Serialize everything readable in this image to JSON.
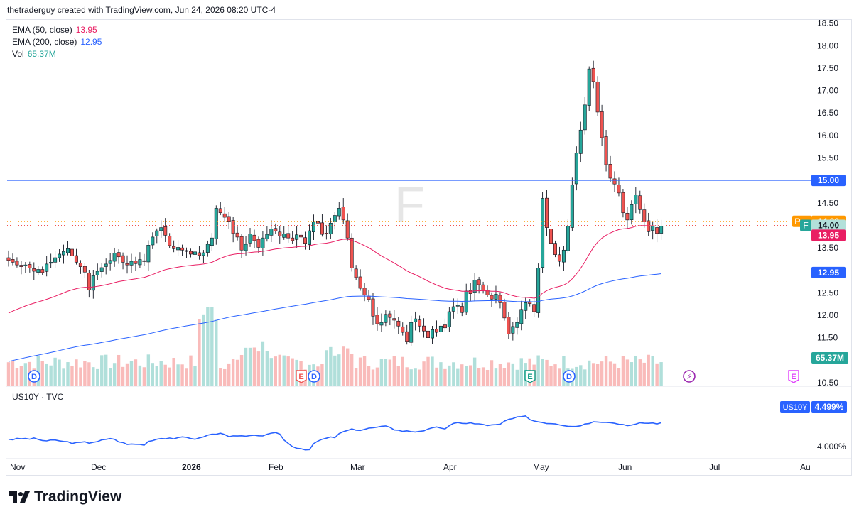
{
  "credit": "thetraderguy created with TradingView.com, Jun 24, 2026 08:20 UTC-4",
  "symbol_watermark": "F",
  "brand": "TradingView",
  "legend": {
    "ema50_label": "EMA (50, close)",
    "ema50_value": "13.95",
    "ema200_label": "EMA (200, close)",
    "ema200_value": "12.95",
    "vol_label": "Vol",
    "vol_value": "65.37M"
  },
  "price_axis": [
    "18.50",
    "18.00",
    "17.50",
    "17.00",
    "16.50",
    "16.00",
    "15.50",
    "15.00",
    "14.50",
    "14.00",
    "13.50",
    "13.00",
    "12.50",
    "12.00",
    "11.50",
    "11.00",
    "10.50"
  ],
  "badges": {
    "level": "15.00",
    "pre_tag": "Pre",
    "pre_value": "14.09",
    "last_tag": "F",
    "last_value": "14.00",
    "ema50": "13.95",
    "ema200": "12.95",
    "volume": "65.37M"
  },
  "event_markers": [
    {
      "icon": "dividend-icon",
      "label": "D",
      "date": "2025-11-21"
    },
    {
      "icon": "earnings-icon",
      "label": "E",
      "date": "2026-02-10"
    },
    {
      "icon": "dividend-icon",
      "label": "D",
      "date": "2026-02-12"
    },
    {
      "icon": "earnings-icon",
      "label": "E",
      "date": "2026-04-29"
    },
    {
      "icon": "dividend-icon",
      "label": "D",
      "date": "2026-05-12"
    },
    {
      "icon": "split-icon",
      "label": "",
      "date": "2026-06-24"
    },
    {
      "icon": "upcoming-earnings-icon",
      "label": "E",
      "date": "2026-07-29"
    }
  ],
  "sub_pane": {
    "title": "US10Y · TVC",
    "tag": "US10Y",
    "value": "4.499%",
    "axis_label": "4.000%"
  },
  "time_axis": [
    "Nov",
    "Dec",
    "2026",
    "Feb",
    "Mar",
    "Apr",
    "May",
    "Jun",
    "Jul",
    "Au"
  ],
  "colors": {
    "up": "#26a69a",
    "down": "#ef5350",
    "ema50": "#e91e63",
    "ema200": "#2962ff",
    "pre": "#ff9800",
    "us10y": "#2962ff"
  },
  "chart_data": {
    "type": "candlestick",
    "ylim": [
      10.5,
      18.5
    ],
    "horizontal_line": 15.0,
    "ohlc_daily_approx": [
      [
        13.22,
        13.18,
        13.12,
        13.08,
        13.12,
        13.05,
        12.98,
        13.02,
        12.95,
        13.14,
        13.18,
        13.28,
        13.36,
        13.42,
        13.48,
        13.32,
        13.18,
        13.08,
        12.96,
        12.56,
        12.88,
        12.98,
        13.06,
        13.14,
        13.22,
        13.38,
        13.3,
        13.18,
        13.12,
        13.2,
        13.15,
        13.24,
        13.21,
        13.56,
        13.74,
        13.88,
        13.95,
        13.78,
        13.55,
        13.48,
        13.51,
        13.45,
        13.42,
        13.36,
        13.41,
        13.33,
        13.39,
        13.58,
        13.72,
        14.38,
        14.28,
        14.18,
        14.09,
        13.82,
        13.74,
        13.45,
        13.58,
        13.81,
        13.66,
        13.51,
        13.72,
        13.8,
        13.92,
        13.87,
        13.76,
        13.81,
        13.72,
        13.66,
        13.79,
        13.74,
        13.6,
        13.88,
        14.08,
        14.05,
        13.8,
        13.82,
        14.05,
        14.22,
        14.38
      ],
      [
        14.12,
        13.72,
        13.05,
        12.84,
        12.6,
        12.45,
        12.35,
        11.98,
        11.81,
        11.84,
        12.02,
        11.95,
        11.89,
        11.76,
        11.62,
        11.42,
        11.84,
        11.92,
        11.76,
        11.65,
        11.5,
        11.68,
        11.62,
        11.76,
        11.72,
        12.08,
        12.19,
        12.22,
        12.06,
        12.54,
        12.48,
        12.78,
        12.68,
        12.56,
        12.45,
        12.36,
        12.47,
        12.28,
        11.94,
        11.58,
        11.75,
        11.84,
        12.13,
        12.28,
        12.26,
        12.08,
        13.05,
        14.6,
        13.95,
        13.6,
        13.35,
        13.2,
        13.45,
        13.98,
        14.9,
        15.61,
        16.12,
        16.68,
        17.48,
        17.2,
        16.52,
        15.95,
        15.35,
        15.05,
        14.92,
        14.72,
        14.28,
        14.12,
        14.46,
        14.68,
        14.35,
        14.08,
        13.86,
        13.98,
        13.82,
        13.98
      ]
    ],
    "volume_unit": "relative",
    "note_series": "ohlc_daily_approx holds approximate daily closes read from the chart"
  }
}
